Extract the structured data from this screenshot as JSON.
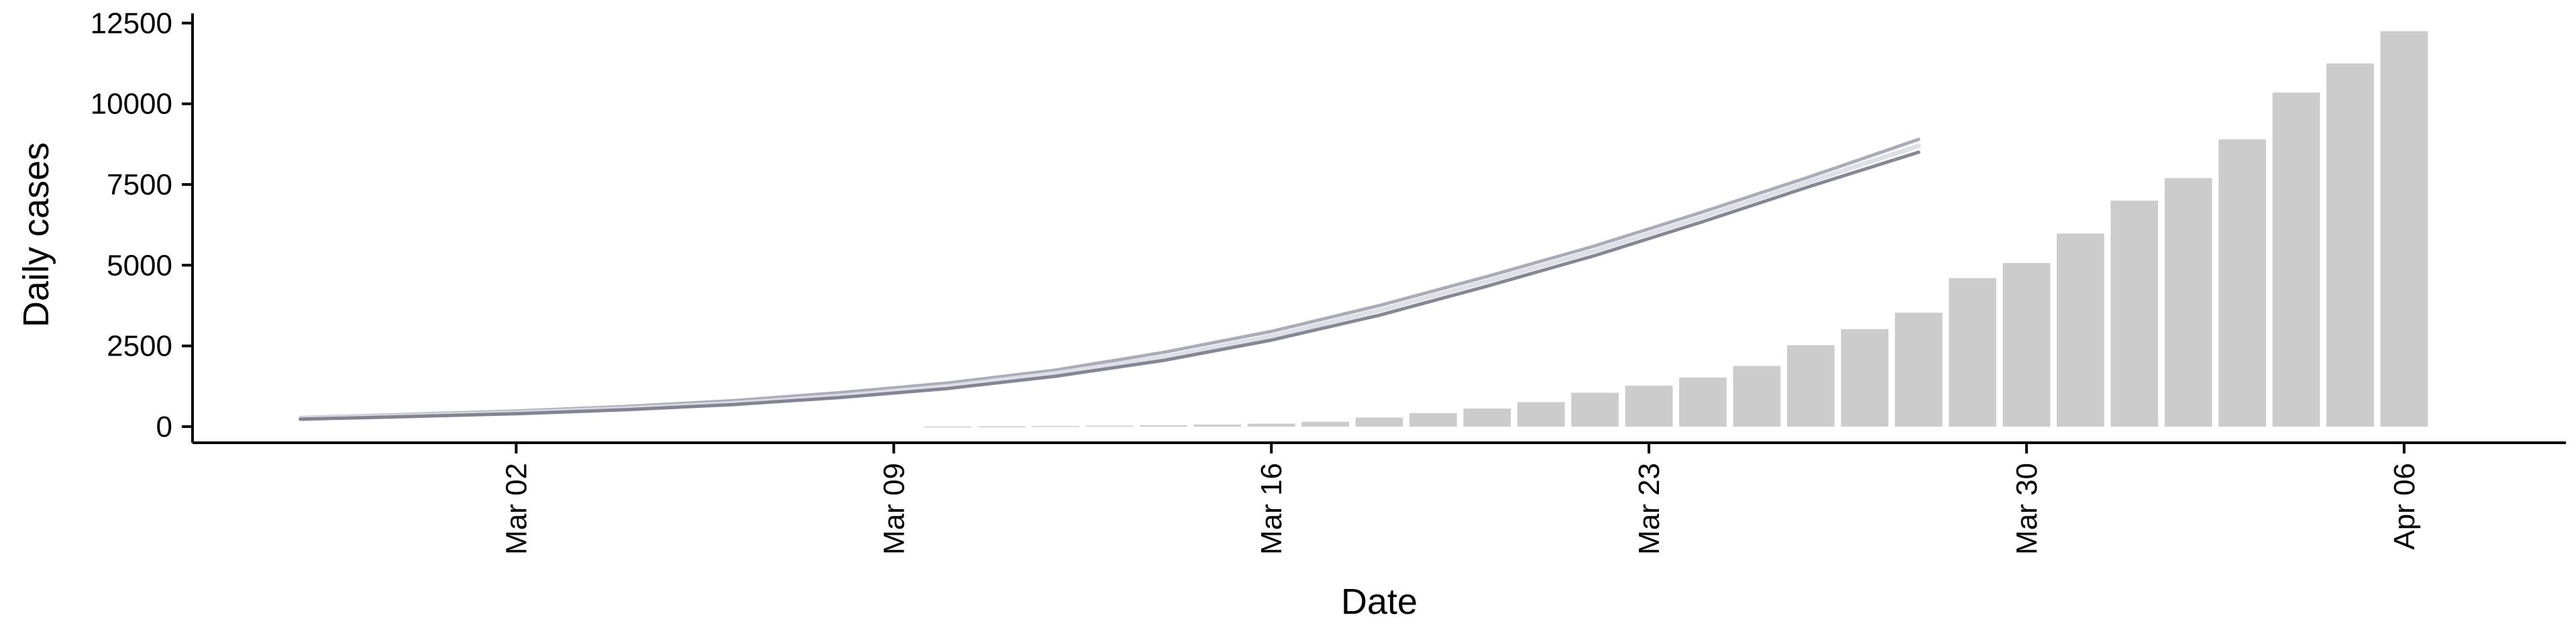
{
  "chart_data": {
    "type": "bar",
    "xlabel": "Date",
    "ylabel": "Daily cases",
    "ylim": [
      -500,
      12800
    ],
    "xlim": [
      "2020-02-25",
      "2020-04-09"
    ],
    "yticks": [
      0,
      2500,
      5000,
      7500,
      10000,
      12500
    ],
    "yticklabels": [
      "0",
      "2500",
      "5000",
      "7500",
      "10000",
      "12500"
    ],
    "xticks": [
      "2020-03-02",
      "2020-03-09",
      "2020-03-16",
      "2020-03-23",
      "2020-03-30",
      "2020-04-06"
    ],
    "xticklabels": [
      "Mar 02",
      "Mar 09",
      "Mar 16",
      "Mar 23",
      "Mar 30",
      "Apr 06"
    ],
    "colors": {
      "bars": "#cccccc",
      "lines": "#6f6e80",
      "axis": "#000000"
    },
    "bars": {
      "dates": [
        "2020-03-10",
        "2020-03-11",
        "2020-03-12",
        "2020-03-13",
        "2020-03-14",
        "2020-03-15",
        "2020-03-16",
        "2020-03-17",
        "2020-03-18",
        "2020-03-19",
        "2020-03-20",
        "2020-03-21",
        "2020-03-22",
        "2020-03-23",
        "2020-03-24",
        "2020-03-25",
        "2020-03-26",
        "2020-03-27",
        "2020-03-28",
        "2020-03-29",
        "2020-03-30",
        "2020-03-31",
        "2020-04-01",
        "2020-04-02",
        "2020-04-03",
        "2020-04-04",
        "2020-04-05",
        "2020-04-06"
      ],
      "values": [
        5,
        10,
        20,
        30,
        45,
        65,
        90,
        150,
        280,
        420,
        560,
        760,
        1050,
        1270,
        1520,
        1880,
        2520,
        3020,
        3530,
        4600,
        5070,
        5980,
        7000,
        7700,
        8900,
        10350,
        11250,
        12250
      ]
    },
    "series": [
      {
        "dates": [
          "2020-02-27",
          "2020-02-29",
          "2020-03-02",
          "2020-03-04",
          "2020-03-06",
          "2020-03-08",
          "2020-03-10",
          "2020-03-12",
          "2020-03-14",
          "2020-03-16",
          "2020-03-18",
          "2020-03-20",
          "2020-03-22",
          "2020-03-24",
          "2020-03-26",
          "2020-03-28"
        ],
        "values": [
          280,
          380,
          480,
          620,
          800,
          1050,
          1350,
          1750,
          2300,
          2950,
          3750,
          4650,
          5600,
          6650,
          7750,
          8900
        ]
      },
      {
        "dates": [
          "2020-02-27",
          "2020-02-29",
          "2020-03-02",
          "2020-03-04",
          "2020-03-06",
          "2020-03-08",
          "2020-03-10",
          "2020-03-12",
          "2020-03-14",
          "2020-03-16",
          "2020-03-18",
          "2020-03-20",
          "2020-03-22",
          "2020-03-24",
          "2020-03-26",
          "2020-03-28"
        ],
        "values": [
          250,
          340,
          430,
          560,
          720,
          950,
          1250,
          1650,
          2150,
          2800,
          3600,
          4500,
          5450,
          6500,
          7600,
          8700
        ]
      },
      {
        "dates": [
          "2020-02-27",
          "2020-02-29",
          "2020-03-02",
          "2020-03-04",
          "2020-03-06",
          "2020-03-08",
          "2020-03-10",
          "2020-03-12",
          "2020-03-14",
          "2020-03-16",
          "2020-03-18",
          "2020-03-20",
          "2020-03-22",
          "2020-03-24",
          "2020-03-26",
          "2020-03-28"
        ],
        "values": [
          230,
          310,
          400,
          520,
          680,
          900,
          1180,
          1560,
          2050,
          2680,
          3450,
          4350,
          5300,
          6350,
          7450,
          8500
        ]
      }
    ]
  }
}
